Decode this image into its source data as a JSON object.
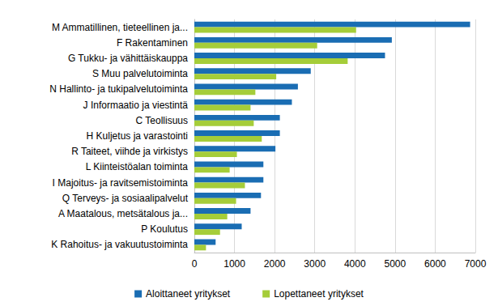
{
  "chart_data": {
    "type": "bar",
    "orientation": "horizontal",
    "categories": [
      "M Ammatillinen, tieteellinen ja...",
      "F Rakentaminen",
      "G Tukku- ja vähittäiskauppa",
      "S Muu palvelutoiminta",
      "N Hallinto- ja tukipalvelutoiminta",
      "J Informaatio ja viestintä",
      "C Teollisuus",
      "H Kuljetus ja varastointi",
      "R Taiteet, viihde ja virkistys",
      "L Kiinteistöalan toiminta",
      "I Majoitus- ja ravitsemistoiminta",
      "Q Terveys- ja sosiaalipalvelut",
      "A Maatalous, metsätalous ja...",
      "P Koulutus",
      "K Rahoitus- ja vakuutustoiminta"
    ],
    "series": [
      {
        "name": "Aloittaneet yritykset",
        "color": "#1a6db3",
        "values": [
          6870,
          4920,
          4750,
          2900,
          2580,
          2430,
          2130,
          2130,
          2020,
          1720,
          1720,
          1660,
          1400,
          1180,
          530
        ]
      },
      {
        "name": "Lopettaneet yritykset",
        "color": "#a5cd39",
        "values": [
          4030,
          3060,
          3820,
          2040,
          1520,
          1400,
          1480,
          1680,
          1060,
          880,
          1260,
          1040,
          820,
          640,
          290
        ]
      }
    ],
    "xlim": [
      0,
      7000
    ],
    "xticks": [
      0,
      1000,
      2000,
      3000,
      4000,
      5000,
      6000,
      7000
    ],
    "grid": true,
    "legend": "bottom"
  }
}
